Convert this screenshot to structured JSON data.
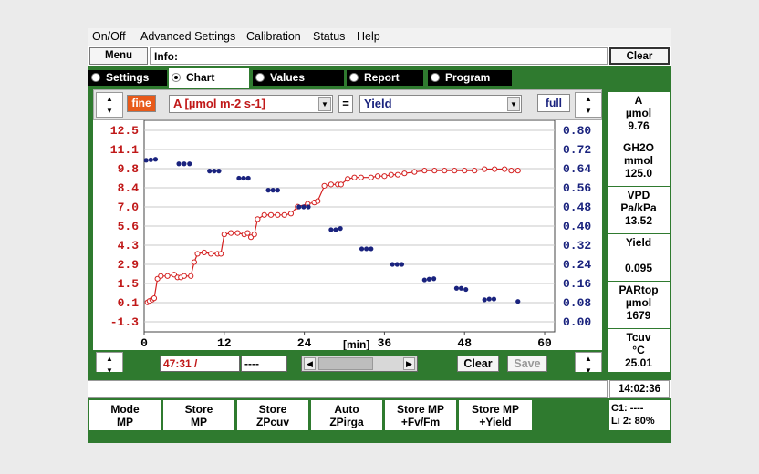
{
  "menu": [
    "On/Off",
    "Advanced Settings",
    "Calibration",
    "Status",
    "Help"
  ],
  "toolbar": {
    "menu_label": "Menu",
    "info_label": "Info:",
    "clear_label": "Clear"
  },
  "tabs": [
    {
      "label": "Settings",
      "active": false
    },
    {
      "label": "Chart",
      "active": true
    },
    {
      "label": "Values",
      "active": false
    },
    {
      "label": "Report",
      "active": false
    },
    {
      "label": "Program",
      "active": false
    }
  ],
  "controls": {
    "fine_label": "fine",
    "left_select": "A [µmol m-2 s-1]",
    "equals": "=",
    "right_select": "Yield",
    "full_label": "full"
  },
  "chart_data": {
    "type": "scatter",
    "xlabel": "[min]",
    "x_ticks": [
      "0",
      "12",
      "24",
      "36",
      "48",
      "60"
    ],
    "y_left_ticks": [
      "12.5",
      "11.1",
      "9.8",
      "8.4",
      "7.0",
      "5.6",
      "4.3",
      "2.9",
      "1.5",
      "0.1",
      "-1.3"
    ],
    "y_right_ticks": [
      "0.80",
      "0.72",
      "0.64",
      "0.56",
      "0.48",
      "0.40",
      "0.32",
      "0.24",
      "0.16",
      "0.08",
      "0.00"
    ],
    "xlim": [
      0,
      61.5
    ],
    "y_left_lim": [
      -1.3,
      12.5
    ],
    "y_right_lim": [
      0.0,
      0.8
    ],
    "grid": true,
    "colors": {
      "series_a": "#d42020",
      "yield": "#1a237e",
      "left_axis": "#c01818",
      "right_axis": "#1a237e"
    },
    "series": [
      {
        "axis": "left",
        "style": "line+circles",
        "values": [
          [
            0.5,
            0.1
          ],
          [
            0.8,
            0.2
          ],
          [
            1.2,
            0.3
          ],
          [
            1.5,
            0.4
          ],
          [
            2.0,
            1.8
          ],
          [
            2.5,
            2.0
          ],
          [
            3.5,
            2.0
          ],
          [
            4.5,
            2.1
          ],
          [
            5.0,
            1.9
          ],
          [
            5.5,
            1.9
          ],
          [
            6.0,
            2.0
          ],
          [
            7.0,
            2.0
          ],
          [
            7.5,
            3.0
          ],
          [
            8.0,
            3.6
          ],
          [
            9.0,
            3.7
          ],
          [
            10.0,
            3.6
          ],
          [
            11.0,
            3.6
          ],
          [
            11.5,
            3.6
          ],
          [
            12.0,
            5.0
          ],
          [
            13.0,
            5.1
          ],
          [
            14.0,
            5.1
          ],
          [
            15.0,
            5.0
          ],
          [
            15.5,
            5.1
          ],
          [
            16.0,
            4.8
          ],
          [
            16.5,
            5.0
          ],
          [
            17.0,
            6.1
          ],
          [
            18.0,
            6.4
          ],
          [
            19.0,
            6.4
          ],
          [
            20.0,
            6.4
          ],
          [
            21.0,
            6.4
          ],
          [
            22.0,
            6.5
          ],
          [
            23.0,
            7.0
          ],
          [
            24.5,
            7.2
          ],
          [
            25.5,
            7.3
          ],
          [
            26.0,
            7.4
          ],
          [
            27.0,
            8.5
          ],
          [
            28.0,
            8.6
          ],
          [
            29.0,
            8.6
          ],
          [
            29.5,
            8.6
          ],
          [
            30.5,
            9.0
          ],
          [
            31.5,
            9.1
          ],
          [
            32.5,
            9.1
          ],
          [
            34.0,
            9.1
          ],
          [
            35.0,
            9.2
          ],
          [
            36.0,
            9.2
          ],
          [
            37.0,
            9.3
          ],
          [
            38.0,
            9.3
          ],
          [
            39.0,
            9.4
          ],
          [
            40.5,
            9.5
          ],
          [
            42.0,
            9.6
          ],
          [
            43.5,
            9.6
          ],
          [
            45.0,
            9.6
          ],
          [
            46.5,
            9.6
          ],
          [
            48.0,
            9.6
          ],
          [
            49.5,
            9.6
          ],
          [
            51.0,
            9.7
          ],
          [
            52.5,
            9.7
          ],
          [
            54.0,
            9.7
          ],
          [
            55.0,
            9.6
          ],
          [
            56.0,
            9.6
          ]
        ]
      },
      {
        "axis": "right",
        "style": "dots",
        "values": [
          [
            0.3,
            0.675
          ],
          [
            1.0,
            0.677
          ],
          [
            1.7,
            0.679
          ],
          [
            5.2,
            0.66
          ],
          [
            6.0,
            0.66
          ],
          [
            6.8,
            0.66
          ],
          [
            9.8,
            0.63
          ],
          [
            10.5,
            0.63
          ],
          [
            11.2,
            0.63
          ],
          [
            14.2,
            0.6
          ],
          [
            14.9,
            0.6
          ],
          [
            15.6,
            0.6
          ],
          [
            18.6,
            0.55
          ],
          [
            19.3,
            0.55
          ],
          [
            20.0,
            0.55
          ],
          [
            23.2,
            0.48
          ],
          [
            23.9,
            0.48
          ],
          [
            24.6,
            0.48
          ],
          [
            28.0,
            0.385
          ],
          [
            28.7,
            0.385
          ],
          [
            29.4,
            0.39
          ],
          [
            32.6,
            0.305
          ],
          [
            33.3,
            0.305
          ],
          [
            34.0,
            0.305
          ],
          [
            37.2,
            0.24
          ],
          [
            37.9,
            0.24
          ],
          [
            38.6,
            0.24
          ],
          [
            42.0,
            0.175
          ],
          [
            42.7,
            0.178
          ],
          [
            43.4,
            0.18
          ],
          [
            46.8,
            0.14
          ],
          [
            47.5,
            0.14
          ],
          [
            48.2,
            0.135
          ],
          [
            51.0,
            0.092
          ],
          [
            51.7,
            0.095
          ],
          [
            52.4,
            0.095
          ],
          [
            56.0,
            0.085
          ]
        ]
      }
    ]
  },
  "timebar": {
    "time_value": "47:31 /",
    "time_value2": "----",
    "clear_label": "Clear",
    "save_label": "Save"
  },
  "sidebar": [
    {
      "name": "A",
      "unit": "µmol",
      "value": "9.76"
    },
    {
      "name": "GH2O",
      "unit": "mmol",
      "value": "125.0"
    },
    {
      "name": "VPD",
      "unit": "Pa/kPa",
      "value": "13.52"
    },
    {
      "name": "Yield",
      "unit": "",
      "value": "0.095"
    },
    {
      "name": "PARtop",
      "unit": "µmol",
      "value": "1679"
    },
    {
      "name": "Tcuv",
      "unit": "°C",
      "value": "25.01"
    }
  ],
  "status": {
    "clock": "14:02:36",
    "c1": "C1: ----",
    "li2": "Li 2: 80%"
  },
  "bottom_buttons": [
    {
      "line1": "Mode",
      "line2": "MP"
    },
    {
      "line1": "Store",
      "line2": "MP"
    },
    {
      "line1": "Store",
      "line2": "ZPcuv"
    },
    {
      "line1": "Auto",
      "line2": "ZPirga"
    },
    {
      "line1": "Store MP",
      "line2": "+Fv/Fm"
    },
    {
      "line1": "Store MP",
      "line2": "+Yield"
    }
  ]
}
